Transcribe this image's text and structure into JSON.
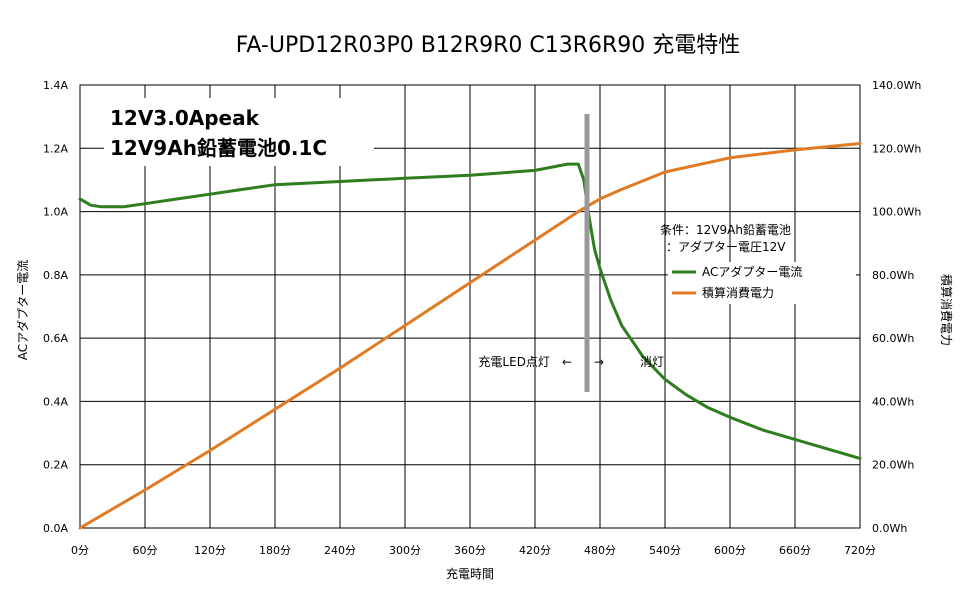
{
  "chart_data": {
    "type": "line",
    "title": "FA-UPD12R03P0 B12R9R0 C13R6R90 充電特性",
    "xlabel": "充電時間",
    "ylabel_left": "ACアダプター電流",
    "ylabel_right": "積算消費電力",
    "x_range": [
      0,
      720
    ],
    "x_ticks": [
      {
        "value": 0,
        "label": "0分"
      },
      {
        "value": 60,
        "label": "60分"
      },
      {
        "value": 120,
        "label": "120分"
      },
      {
        "value": 180,
        "label": "180分"
      },
      {
        "value": 240,
        "label": "240分"
      },
      {
        "value": 300,
        "label": "300分"
      },
      {
        "value": 360,
        "label": "360分"
      },
      {
        "value": 420,
        "label": "420分"
      },
      {
        "value": 480,
        "label": "480分"
      },
      {
        "value": 540,
        "label": "540分"
      },
      {
        "value": 600,
        "label": "600分"
      },
      {
        "value": 660,
        "label": "660分"
      },
      {
        "value": 720,
        "label": "720分"
      }
    ],
    "y_left_range": [
      0,
      1.4
    ],
    "y_left_ticks": [
      {
        "value": 0,
        "label": "0.0A"
      },
      {
        "value": 0.2,
        "label": "0.2A"
      },
      {
        "value": 0.4,
        "label": "0.4A"
      },
      {
        "value": 0.6,
        "label": "0.6A"
      },
      {
        "value": 0.8,
        "label": "0.8A"
      },
      {
        "value": 1.0,
        "label": "1.0A"
      },
      {
        "value": 1.2,
        "label": "1.2A"
      },
      {
        "value": 1.4,
        "label": "1.4A"
      }
    ],
    "y_right_range": [
      0,
      140
    ],
    "y_right_ticks": [
      {
        "value": 0,
        "label": "0.0Wh"
      },
      {
        "value": 20,
        "label": "20.0Wh"
      },
      {
        "value": 40,
        "label": "40.0Wh"
      },
      {
        "value": 60,
        "label": "60.0Wh"
      },
      {
        "value": 80,
        "label": "80.0Wh"
      },
      {
        "value": 100,
        "label": "100.0Wh"
      },
      {
        "value": 120,
        "label": "120.0Wh"
      },
      {
        "value": 140,
        "label": "140.0Wh"
      }
    ],
    "grid": true,
    "series": [
      {
        "name": "ACアダプター電流",
        "axis": "left",
        "color": "#2e7d1e",
        "x": [
          0,
          10,
          20,
          40,
          60,
          90,
          120,
          150,
          180,
          210,
          240,
          300,
          360,
          420,
          450,
          460,
          465,
          470,
          475,
          480,
          490,
          500,
          520,
          540,
          560,
          580,
          600,
          630,
          660,
          690,
          720
        ],
        "y": [
          1.04,
          1.02,
          1.015,
          1.015,
          1.025,
          1.04,
          1.055,
          1.07,
          1.085,
          1.09,
          1.095,
          1.105,
          1.115,
          1.13,
          1.15,
          1.15,
          1.1,
          0.98,
          0.88,
          0.82,
          0.72,
          0.64,
          0.54,
          0.47,
          0.42,
          0.38,
          0.35,
          0.31,
          0.28,
          0.25,
          0.22
        ]
      },
      {
        "name": "積算消費電力",
        "axis": "right",
        "color": "#e07b24",
        "x": [
          0,
          60,
          120,
          180,
          240,
          300,
          360,
          420,
          460,
          480,
          500,
          540,
          600,
          660,
          720
        ],
        "y": [
          0,
          12,
          24.5,
          37.5,
          50.5,
          64,
          77.5,
          91,
          100,
          104,
          107,
          112.5,
          117,
          119.5,
          121.5
        ]
      }
    ],
    "legend_position": "right-middle",
    "legend_entries": [
      "ACアダプター電流",
      "積算消費電力"
    ],
    "conditions": [
      "条件：12V9Ah鉛蓄電池",
      "：アダプター電圧12V"
    ],
    "annotation_left": "充電LED点灯　←",
    "annotation_right": "→　　　消灯",
    "marker_x": 468,
    "overlay_line1": "12V3.0Apeak",
    "overlay_line2": "12V9Ah鉛蓄電池0.1C"
  }
}
